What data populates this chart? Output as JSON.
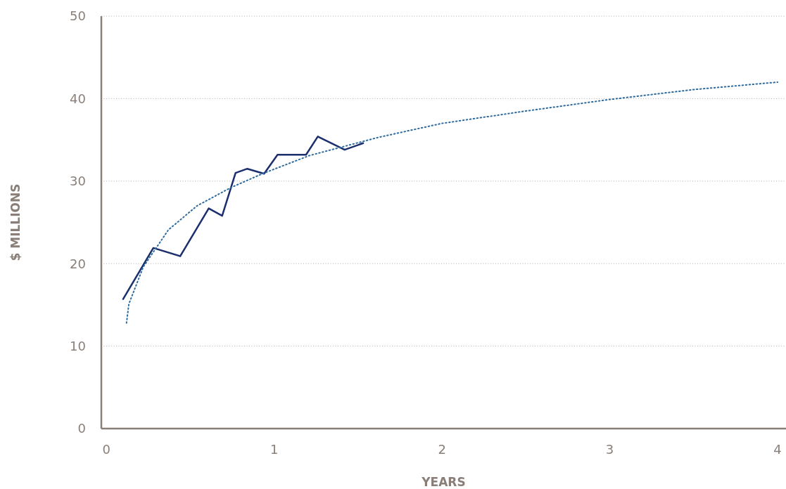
{
  "chart_data": {
    "type": "line",
    "xlabel": "YEARS",
    "ylabel": "$ MILLIONS",
    "xlim": [
      -0.03,
      4.05
    ],
    "xticks": [
      0,
      1,
      2,
      3,
      4
    ],
    "ylim": [
      0,
      50
    ],
    "yticks": [
      0,
      10,
      20,
      30,
      40,
      50
    ],
    "grid": "y",
    "marker": "none",
    "series": [
      {
        "color": "#1b2f6e",
        "line_style": "solid",
        "x": [
          0.1,
          0.28,
          0.44,
          0.61,
          0.69,
          0.77,
          0.84,
          0.94,
          1.02,
          1.19,
          1.26,
          1.42,
          1.53
        ],
        "values": [
          15.7,
          21.9,
          20.9,
          26.7,
          25.8,
          31.0,
          31.5,
          30.9,
          33.2,
          33.2,
          35.4,
          33.8,
          34.6
        ]
      },
      {
        "color": "#2e6b9e",
        "line_style": "dotted",
        "x": [
          0.12,
          0.134,
          0.22,
          0.37,
          0.54,
          0.74,
          0.93,
          1.21,
          1.62,
          2,
          2.5,
          3,
          3.5,
          4
        ],
        "values": [
          12.8,
          15.1,
          19.6,
          24.1,
          27.0,
          29.2,
          30.9,
          33.1,
          35.3,
          37.0,
          38.5,
          39.9,
          41.1,
          42.0
        ]
      }
    ]
  }
}
